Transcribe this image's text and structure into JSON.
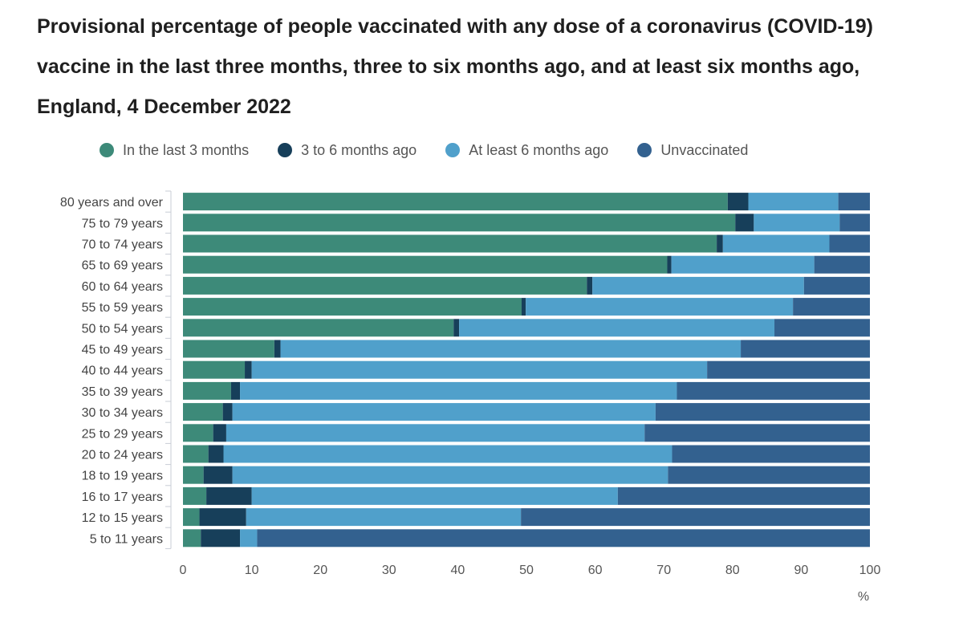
{
  "chart_data": {
    "type": "bar",
    "orientation": "horizontal",
    "stacked": true,
    "title": "Provisional percentage of people vaccinated with any dose of a coronavirus (COVID-19) vaccine in the last three months, three to six months ago, and at least six months ago, England, 4 December 2022",
    "xlabel": "%",
    "ylabel": "",
    "xlim": [
      0,
      100
    ],
    "xticks": [
      0,
      10,
      20,
      30,
      40,
      50,
      60,
      70,
      80,
      90,
      100
    ],
    "legend_position": "top",
    "grid": false,
    "categories": [
      "80 years and over",
      "75 to 79 years",
      "70 to 74 years",
      "65 to 69 years",
      "60 to 64 years",
      "55 to 59 years",
      "50 to 54 years",
      "45 to 49 years",
      "40 to 44 years",
      "35 to 39 years",
      "30 to 34 years",
      "25 to 29 years",
      "20 to 24 years",
      "18 to 19 years",
      "16 to 17 years",
      "12 to 15 years",
      "5 to 11 years"
    ],
    "series": [
      {
        "name": "In the last 3 months",
        "color": "#3d8a79",
        "values": [
          79.3,
          80.4,
          77.7,
          70.5,
          58.8,
          49.3,
          39.4,
          13.3,
          9.0,
          7.0,
          5.8,
          4.4,
          3.7,
          3.0,
          3.4,
          2.4,
          2.6
        ]
      },
      {
        "name": "3 to 6 months ago",
        "color": "#173f5a",
        "values": [
          3.0,
          2.7,
          0.9,
          0.6,
          0.8,
          0.6,
          0.8,
          0.9,
          1.0,
          1.3,
          1.4,
          1.9,
          2.2,
          4.2,
          6.6,
          6.8,
          5.7
        ]
      },
      {
        "name": "At least 6 months ago",
        "color": "#50a0cb",
        "values": [
          13.1,
          12.5,
          15.5,
          20.8,
          30.8,
          38.9,
          45.9,
          67.0,
          66.3,
          63.6,
          61.6,
          60.9,
          65.3,
          63.4,
          53.3,
          40.0,
          2.5
        ]
      },
      {
        "name": "Unvaccinated",
        "color": "#33618f",
        "values": [
          4.6,
          4.4,
          5.9,
          8.1,
          9.6,
          11.2,
          13.9,
          18.8,
          23.7,
          28.1,
          31.2,
          32.8,
          28.8,
          29.4,
          36.7,
          50.8,
          89.2
        ]
      }
    ]
  }
}
